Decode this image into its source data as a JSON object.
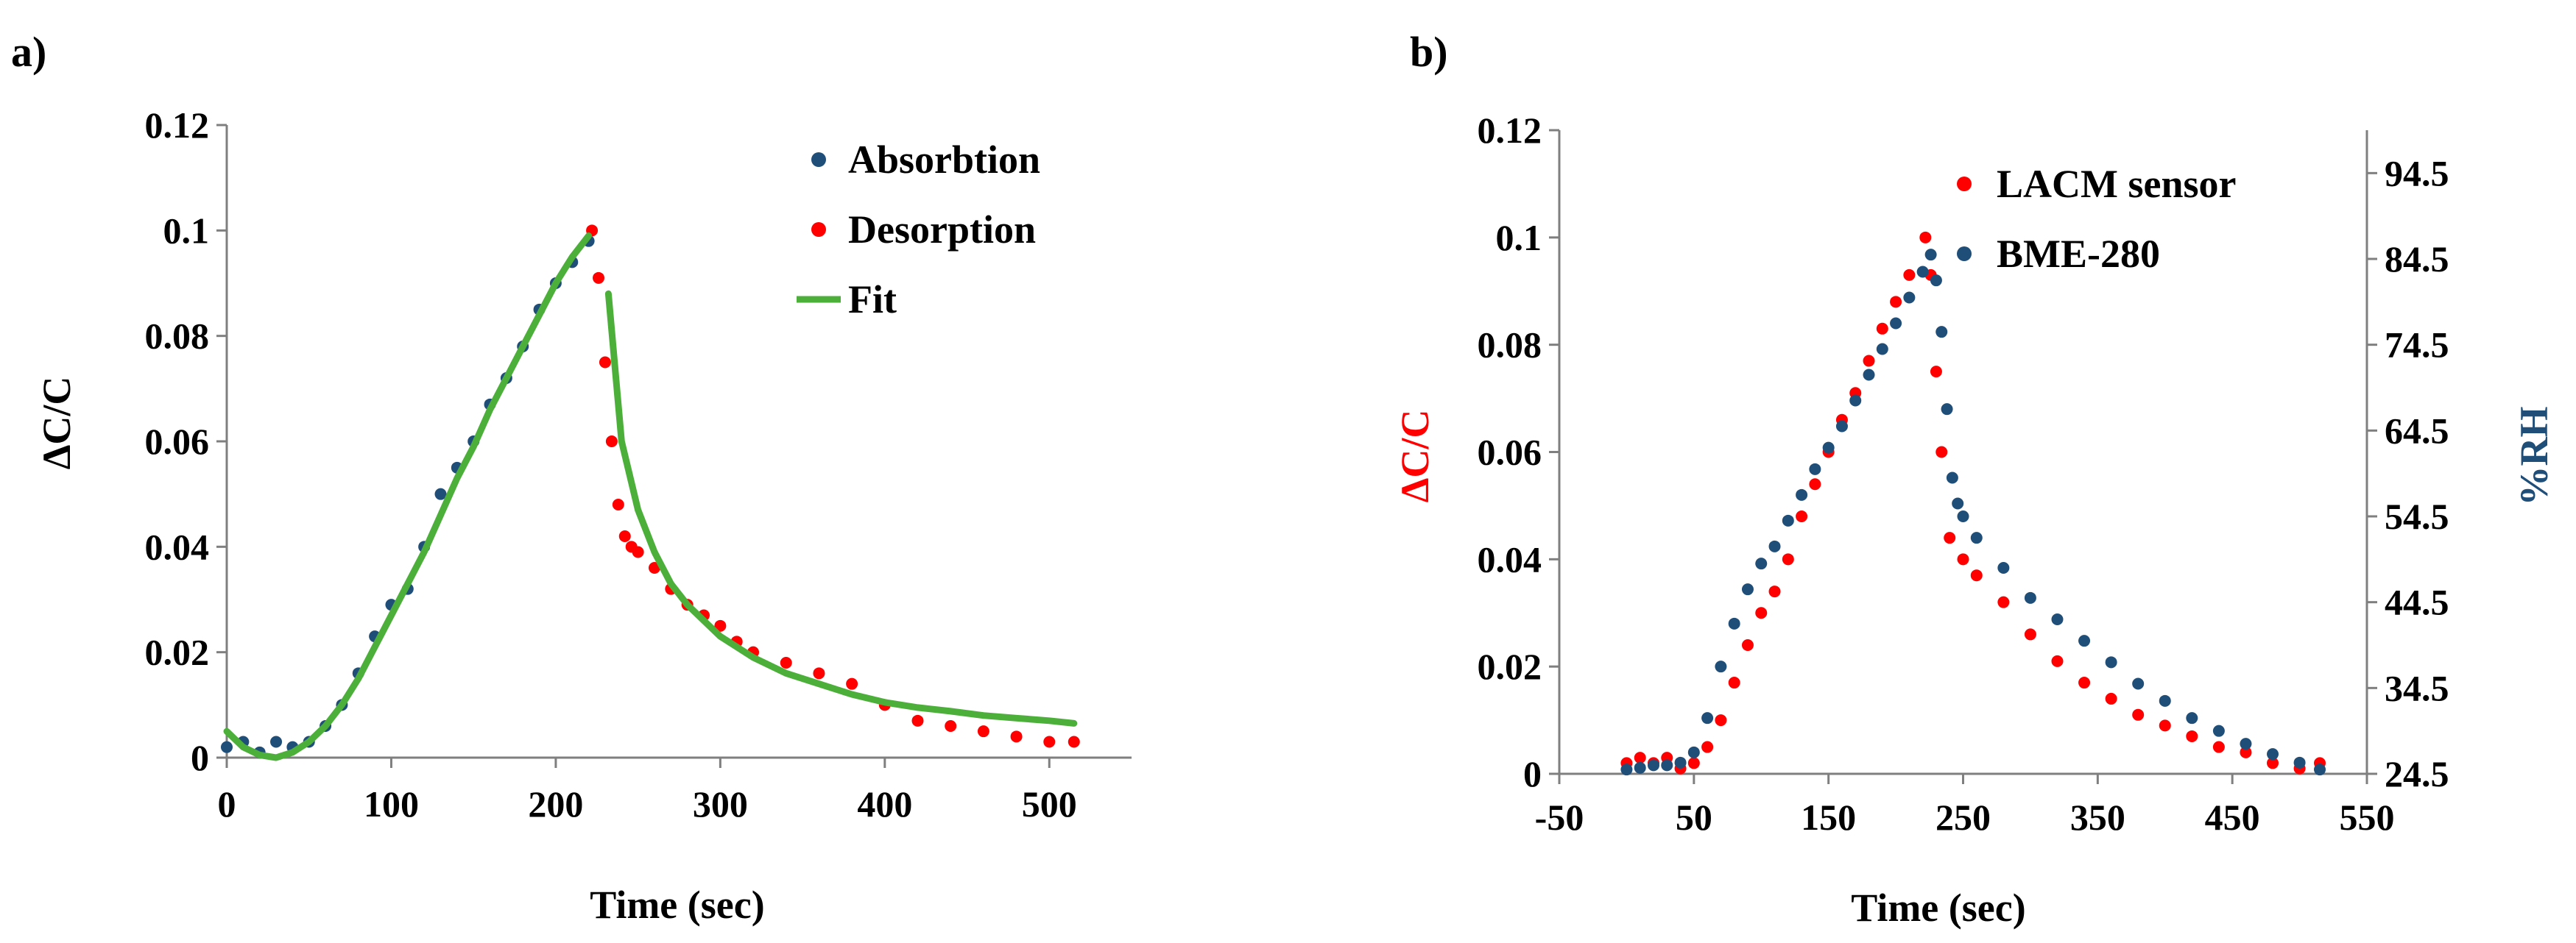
{
  "chart_data": [
    {
      "panel_label": "a)",
      "type": "scatter",
      "xlabel": "Time (sec)",
      "ylabel": "ΔC/C",
      "xlim": [
        0,
        550
      ],
      "ylim": [
        0,
        0.12
      ],
      "x_ticks": [
        "0",
        "100",
        "200",
        "300",
        "400",
        "500"
      ],
      "y_ticks": [
        "0",
        "0.02",
        "0.04",
        "0.06",
        "0.08",
        "0.1",
        "0.12"
      ],
      "legend_position": "top-right",
      "series": [
        {
          "name": "Absorbtion",
          "color": "#1f4e79",
          "marker": "dot",
          "x": [
            0,
            10,
            20,
            30,
            40,
            50,
            60,
            70,
            80,
            90,
            100,
            110,
            120,
            130,
            140,
            150,
            160,
            170,
            180,
            190,
            200,
            210,
            220
          ],
          "y": [
            0.002,
            0.003,
            0.001,
            0.003,
            0.002,
            0.003,
            0.006,
            0.01,
            0.016,
            0.023,
            0.029,
            0.032,
            0.04,
            0.05,
            0.055,
            0.06,
            0.067,
            0.072,
            0.078,
            0.085,
            0.09,
            0.094,
            0.098
          ]
        },
        {
          "name": "Desorption",
          "color": "#ff0000",
          "marker": "dot",
          "x": [
            222,
            226,
            230,
            234,
            238,
            242,
            246,
            250,
            260,
            270,
            280,
            290,
            300,
            310,
            320,
            340,
            360,
            380,
            400,
            420,
            440,
            460,
            480,
            500,
            515
          ],
          "y": [
            0.1,
            0.091,
            0.075,
            0.06,
            0.048,
            0.042,
            0.04,
            0.039,
            0.036,
            0.032,
            0.029,
            0.027,
            0.025,
            0.022,
            0.02,
            0.018,
            0.016,
            0.014,
            0.01,
            0.007,
            0.006,
            0.005,
            0.004,
            0.003,
            0.003
          ]
        },
        {
          "name": "Fit",
          "color": "#4caf3a",
          "marker": "line",
          "x": [
            0,
            10,
            20,
            30,
            40,
            50,
            60,
            70,
            80,
            90,
            100,
            110,
            120,
            130,
            140,
            150,
            160,
            170,
            180,
            190,
            200,
            210,
            220
          ],
          "y": [
            0.005,
            0.002,
            0.0005,
            0.0,
            0.001,
            0.003,
            0.006,
            0.01,
            0.015,
            0.021,
            0.027,
            0.033,
            0.039,
            0.046,
            0.053,
            0.059,
            0.066,
            0.072,
            0.078,
            0.084,
            0.09,
            0.095,
            0.099
          ]
        },
        {
          "name": "Fit",
          "color": "#4caf3a",
          "marker": "line",
          "x": [
            232,
            240,
            250,
            260,
            270,
            280,
            300,
            320,
            340,
            360,
            380,
            400,
            420,
            440,
            460,
            480,
            500,
            515
          ],
          "y": [
            0.088,
            0.06,
            0.047,
            0.039,
            0.033,
            0.029,
            0.023,
            0.019,
            0.016,
            0.014,
            0.012,
            0.0105,
            0.0095,
            0.0088,
            0.008,
            0.0075,
            0.007,
            0.0065
          ]
        }
      ],
      "legend": [
        {
          "label": "Absorbtion",
          "color": "#1f4e79",
          "marker": "dot"
        },
        {
          "label": "Desorption",
          "color": "#ff0000",
          "marker": "dot"
        },
        {
          "label": "Fit",
          "color": "#4caf3a",
          "marker": "line"
        }
      ]
    },
    {
      "panel_label": "b)",
      "type": "scatter",
      "xlabel": "Time (sec)",
      "ylabel": "ΔC/C",
      "ylabel_color": "#ff0000",
      "ylabel_right": "%RH",
      "ylabel_right_color": "#1f4e79",
      "xlim": [
        -50,
        550
      ],
      "ylim": [
        0,
        0.12
      ],
      "ylim_right": [
        24.5,
        99.5
      ],
      "x_ticks": [
        "-50",
        "50",
        "150",
        "250",
        "350",
        "450",
        "550"
      ],
      "y_ticks": [
        "0",
        "0.02",
        "0.04",
        "0.06",
        "0.08",
        "0.1",
        "0.12"
      ],
      "y_ticks_right": [
        "24.5",
        "34.5",
        "44.5",
        "54.5",
        "64.5",
        "74.5",
        "84.5",
        "94.5"
      ],
      "legend_position": "top-right",
      "series": [
        {
          "name": "LACM sensor",
          "color": "#ff0000",
          "axis": "left",
          "marker": "dot",
          "x": [
            0,
            10,
            20,
            30,
            40,
            50,
            60,
            70,
            80,
            90,
            100,
            110,
            120,
            130,
            140,
            150,
            160,
            170,
            180,
            190,
            200,
            210,
            222,
            226,
            230,
            234,
            240,
            250,
            260,
            280,
            300,
            320,
            340,
            360,
            380,
            400,
            420,
            440,
            460,
            480,
            500,
            515
          ],
          "y": [
            0.002,
            0.003,
            0.002,
            0.003,
            0.001,
            0.002,
            0.005,
            0.01,
            0.017,
            0.024,
            0.03,
            0.034,
            0.04,
            0.048,
            0.054,
            0.06,
            0.066,
            0.071,
            0.077,
            0.083,
            0.088,
            0.093,
            0.1,
            0.093,
            0.075,
            0.06,
            0.044,
            0.04,
            0.037,
            0.032,
            0.026,
            0.021,
            0.017,
            0.014,
            0.011,
            0.009,
            0.007,
            0.005,
            0.004,
            0.002,
            0.001,
            0.002
          ]
        },
        {
          "name": "BME-280",
          "color": "#1f4e79",
          "axis": "right",
          "marker": "dot",
          "x": [
            0,
            10,
            20,
            30,
            40,
            50,
            60,
            70,
            80,
            90,
            100,
            110,
            120,
            130,
            140,
            150,
            160,
            170,
            180,
            190,
            200,
            210,
            220,
            226,
            230,
            234,
            238,
            242,
            246,
            250,
            260,
            280,
            300,
            320,
            340,
            360,
            380,
            400,
            420,
            440,
            460,
            480,
            500,
            515
          ],
          "y": [
            25,
            25.2,
            25.5,
            25.5,
            25.8,
            27,
            31,
            37,
            42,
            46,
            49,
            51,
            54,
            57,
            60,
            62.5,
            65,
            68,
            71,
            74,
            77,
            80,
            83,
            85,
            82,
            76,
            67,
            59,
            56,
            54.5,
            52,
            48.5,
            45,
            42.5,
            40,
            37.5,
            35,
            33,
            31,
            29.5,
            28,
            26.8,
            25.8,
            25
          ]
        }
      ],
      "legend": [
        {
          "label": "LACM sensor",
          "color": "#ff0000",
          "marker": "dot"
        },
        {
          "label": "BME-280",
          "color": "#1f4e79",
          "marker": "dot"
        }
      ]
    }
  ]
}
